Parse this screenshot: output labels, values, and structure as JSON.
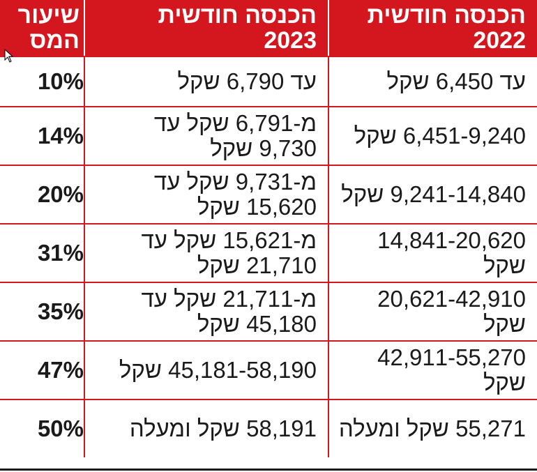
{
  "header": {
    "col_2022_line1": "הכנסה חודשית",
    "col_2022_line2": "2022",
    "col_2023_line1": "הכנסה חודשית",
    "col_2023_line2": "2023",
    "col_rate_line1": "שיעור",
    "col_rate_line2": "המס"
  },
  "rows": [
    {
      "income_2022": "עד 6,450 שקל",
      "income_2023": "עד 6,790 שקל",
      "rate": "10%"
    },
    {
      "income_2022": "6,451-9,240 שקל",
      "income_2023": "מ-6,791 שקל עד 9,730 שקל",
      "rate": "14%"
    },
    {
      "income_2022": "9,241-14,840 שקל",
      "income_2023": "מ-9,731 שקל עד 15,620 שקל",
      "rate": "20%"
    },
    {
      "income_2022": "14,841-20,620 שקל",
      "income_2023": "מ-15,621 שקל עד 21,710 שקל",
      "rate": "31%"
    },
    {
      "income_2022": "20,621-42,910 שקל",
      "income_2023": "מ-21,711 שקל עד 45,180 שקל",
      "rate": "35%"
    },
    {
      "income_2022": "42,911-55,270 שקל",
      "income_2023": "45,181-58,190 שקל",
      "rate": "47%"
    },
    {
      "income_2022": "55,271 שקל ומעלה",
      "income_2023": "58,191 שקל ומעלה",
      "rate": "50%"
    }
  ],
  "colors": {
    "header_bg": "#d4171f",
    "rule": "#d4171f",
    "text": "#1a1a1a"
  }
}
